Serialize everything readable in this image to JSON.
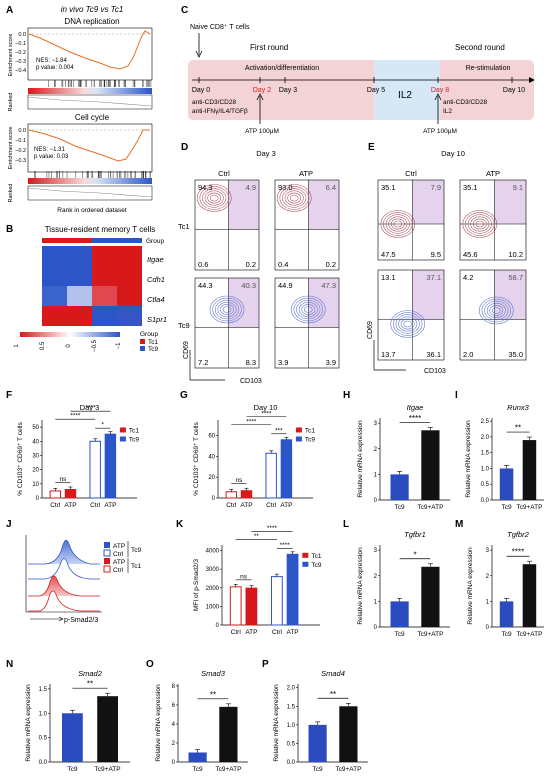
{
  "colors": {
    "tc1": "#d7191c",
    "tc9": "#2c55c8",
    "gsea_line": "#e76f2a",
    "timeline_pink": "#f3d3d6",
    "timeline_blue": "#d6e8f5",
    "quad_pink": "#e9d2ec",
    "quad_purple": "#e0d2ef",
    "red_contour": "#a23a4a",
    "blue_contour": "#4a62c9",
    "bar_blue": "#2b4cc0",
    "bar_black": "#111111"
  },
  "panelA": {
    "label": "A",
    "title": "in vivo Tc9 vs Tc1",
    "top": {
      "title": "DNA replication",
      "nes": "NES: −1.84",
      "pval": "p value: 0.004",
      "yticks": [
        "0.0",
        "−0.1",
        "−0.2",
        "−0.3",
        "−0.4"
      ]
    },
    "bottom": {
      "title": "Cell cycle",
      "nes": "NES: −1.31",
      "pval": "p value: 0.03",
      "yticks": [
        "0.0",
        "−0.1",
        "−0.2",
        "−0.3"
      ]
    },
    "ylabel": "Enrichment score",
    "ranked_label": "Ranked",
    "xlabel": "Rank in ordered dataset"
  },
  "panelB": {
    "label": "B",
    "title": "Tissue-resident memory T cells",
    "group_label": "Group",
    "genes": [
      "Itgae",
      "Cdh1",
      "Ctla4",
      "S1pr1"
    ],
    "scale_ticks": [
      "1",
      "0.5",
      "0",
      "−0.5",
      "−1"
    ],
    "legend_title": "Group",
    "legend": [
      "Tc1",
      "Tc9"
    ]
  },
  "panelC": {
    "label": "C",
    "start": "Naive CD8⁺ T cells",
    "first_round": "First round",
    "second_round": "Second round",
    "phase1": "Activation/differentiation",
    "phase2": "IL2",
    "phase3": "Re-stimulation",
    "days": [
      "Day 0",
      "Day 2",
      "Day 3",
      "Day 5",
      "Day 8",
      "Day 10"
    ],
    "treat1": [
      "anti-CD3/CD28",
      "anti-IFNγ/IL4/TGFβ"
    ],
    "treat2": [
      "anti-CD3/CD28",
      "IL2"
    ],
    "atp1": "ATP 100μM",
    "atp2": "ATP 100μM"
  },
  "panelD": {
    "label": "D",
    "day": "Day 3",
    "cols": [
      "Ctrl",
      "ATP"
    ],
    "row_tc1": "Tc1",
    "row_tc9": "Tc9",
    "xaxis": "CD103",
    "yaxis": "CD69",
    "tc1_ctrl": [
      "94.3",
      "4.9",
      "0.6",
      "0.2"
    ],
    "tc1_atp": [
      "93.0",
      "6.4",
      "0.4",
      "0.2"
    ],
    "tc9_ctrl": [
      "44.3",
      "40.3",
      "7.2",
      "8.3"
    ],
    "tc9_atp": [
      "44.9",
      "47.3",
      "3.9",
      "3.9"
    ]
  },
  "panelE": {
    "label": "E",
    "day": "Day 10",
    "cols": [
      "Ctrl",
      "ATP"
    ],
    "xaxis": "CD103",
    "yaxis": "CD69",
    "tc1_ctrl": [
      "35.1",
      "7.9",
      "47.5",
      "9.5"
    ],
    "tc1_atp": [
      "35.1",
      "9.1",
      "45.6",
      "10.2"
    ],
    "tc9_ctrl": [
      "13.1",
      "37.1",
      "13.7",
      "36.1"
    ],
    "tc9_atp": [
      "4.2",
      "58.7",
      "2.0",
      "35.0"
    ]
  },
  "panelF": {
    "label": "F",
    "title": "Day 3",
    "ylabel": "% CD103⁺ CD69⁺ T cells",
    "yticks": [
      "0",
      "10",
      "20",
      "30",
      "40",
      "50"
    ],
    "xticks": [
      "Ctrl",
      "ATP",
      "Ctrl",
      "ATP"
    ],
    "legend": [
      "Tc1",
      "Tc9"
    ],
    "sig": [
      "ns",
      "****",
      "****",
      "*"
    ]
  },
  "panelG": {
    "label": "G",
    "title": "Day 10",
    "ylabel": "% CD103⁺ CD69⁺ T cells",
    "yticks": [
      "0",
      "20",
      "40",
      "60"
    ],
    "xticks": [
      "Ctrl",
      "ATP",
      "Ctrl",
      "ATP"
    ],
    "legend": [
      "Tc1",
      "Tc9"
    ],
    "sig": [
      "ns",
      "****",
      "****",
      "***"
    ]
  },
  "panelH": {
    "label": "H",
    "gene": "Itgae",
    "ylabel": "Relative mRNA expression",
    "yticks": [
      "0",
      "1",
      "2",
      "3"
    ],
    "xticks": [
      "Tc9",
      "Tc9+ATP"
    ],
    "sig": "****"
  },
  "panelI": {
    "label": "I",
    "gene": "Runx3",
    "ylabel": "Relative mRNA expression",
    "yticks": [
      "0.0",
      "0.5",
      "1.0",
      "1.5",
      "2.0",
      "2.5"
    ],
    "xticks": [
      "Tc9",
      "Tc9+ATP"
    ],
    "sig": "**"
  },
  "panelJ": {
    "label": "J",
    "legend": [
      "ATP",
      "Ctrl",
      "ATP",
      "Ctrl"
    ],
    "groups": [
      "Tc9",
      "Tc1"
    ],
    "xlabel": "p-Smad2/3"
  },
  "panelK": {
    "label": "K",
    "ylabel": "MFI of p-Smad2/3",
    "yticks": [
      "0",
      "1000",
      "2000",
      "3000",
      "4000"
    ],
    "xticks": [
      "Ctrl",
      "ATP",
      "Ctrl",
      "ATP"
    ],
    "legend": [
      "Tc1",
      "Tc9"
    ],
    "sig": [
      "ns",
      "**",
      "****",
      "****"
    ]
  },
  "panelL": {
    "label": "L",
    "gene": "Tgfbr1",
    "ylabel": "Relative mRNA expression",
    "yticks": [
      "0",
      "1",
      "2",
      "3"
    ],
    "xticks": [
      "Tc9",
      "Tc9+ATP"
    ],
    "sig": "*"
  },
  "panelM": {
    "label": "M",
    "gene": "Tgfbr2",
    "ylabel": "Relative mRNA expression",
    "yticks": [
      "0",
      "1",
      "2",
      "3"
    ],
    "xticks": [
      "Tc9",
      "Tc9+ATP"
    ],
    "sig": "****"
  },
  "panelN": {
    "label": "N",
    "gene": "Smad2",
    "ylabel": "Relative mRNA expression",
    "yticks": [
      "0.0",
      "0.5",
      "1.0",
      "1.5"
    ],
    "xticks": [
      "Tc9",
      "Tc9+ATP"
    ],
    "sig": "**"
  },
  "panelO": {
    "label": "O",
    "gene": "Smad3",
    "ylabel": "Relative mRNA expression",
    "yticks": [
      "0",
      "2",
      "4",
      "6",
      "8"
    ],
    "xticks": [
      "Tc9",
      "Tc9+ATP"
    ],
    "sig": "**"
  },
  "panelP": {
    "label": "P",
    "gene": "Smad4",
    "ylabel": "Relative mRNA expression",
    "yticks": [
      "0.0",
      "0.5",
      "1.0",
      "1.5",
      "2.0"
    ],
    "xticks": [
      "Tc9",
      "Tc9+ATP"
    ],
    "sig": "**"
  },
  "chart_data": [
    {
      "type": "bar",
      "panel": "F",
      "title": "Day 3",
      "ylabel": "% CD103⁺ CD69⁺ T cells",
      "categories": [
        "Ctrl",
        "ATP"
      ],
      "ylim": [
        0,
        55
      ],
      "series": [
        {
          "name": "Tc1",
          "values": [
            5,
            6
          ]
        },
        {
          "name": "Tc9",
          "values": [
            40,
            45
          ]
        }
      ]
    },
    {
      "type": "bar",
      "panel": "G",
      "title": "Day 10",
      "ylabel": "% CD103⁺ CD69⁺ T cells",
      "categories": [
        "Ctrl",
        "ATP"
      ],
      "ylim": [
        0,
        75
      ],
      "series": [
        {
          "name": "Tc1",
          "values": [
            6,
            7
          ]
        },
        {
          "name": "Tc9",
          "values": [
            43,
            56
          ]
        }
      ]
    },
    {
      "type": "bar",
      "panel": "H",
      "ylabel": "Relative mRNA expression",
      "categories": [
        "Tc9",
        "Tc9+ATP"
      ],
      "ylim": [
        0,
        3.2
      ],
      "values": [
        1.0,
        2.72
      ]
    },
    {
      "type": "bar",
      "panel": "I",
      "ylabel": "Relative mRNA expression",
      "categories": [
        "Tc9",
        "Tc9+ATP"
      ],
      "ylim": [
        0,
        2.6
      ],
      "values": [
        1.0,
        1.9
      ]
    },
    {
      "type": "bar",
      "panel": "K",
      "ylabel": "MFI of p-Smad2/3",
      "categories": [
        "Ctrl",
        "ATP"
      ],
      "ylim": [
        0,
        4300
      ],
      "series": [
        {
          "name": "Tc1",
          "values": [
            2050,
            1980
          ]
        },
        {
          "name": "Tc9",
          "values": [
            2600,
            3800
          ]
        }
      ]
    },
    {
      "type": "bar",
      "panel": "L",
      "ylabel": "Relative mRNA expression",
      "categories": [
        "Tc9",
        "Tc9+ATP"
      ],
      "ylim": [
        0,
        3.2
      ],
      "values": [
        1.0,
        2.35
      ]
    },
    {
      "type": "bar",
      "panel": "M",
      "ylabel": "Relative mRNA expression",
      "categories": [
        "Tc9",
        "Tc9+ATP"
      ],
      "ylim": [
        0,
        3.2
      ],
      "values": [
        1.0,
        2.45
      ]
    },
    {
      "type": "bar",
      "panel": "N",
      "ylabel": "Relative mRNA expression",
      "categories": [
        "Tc9",
        "Tc9+ATP"
      ],
      "ylim": [
        0,
        1.6
      ],
      "values": [
        1.0,
        1.35
      ]
    },
    {
      "type": "bar",
      "panel": "O",
      "ylabel": "Relative mRNA expression",
      "categories": [
        "Tc9",
        "Tc9+ATP"
      ],
      "ylim": [
        0,
        8.2
      ],
      "values": [
        1.0,
        5.8
      ]
    },
    {
      "type": "bar",
      "panel": "P",
      "ylabel": "Relative mRNA expression",
      "categories": [
        "Tc9",
        "Tc9+ATP"
      ],
      "ylim": [
        0,
        2.1
      ],
      "values": [
        1.0,
        1.5
      ]
    }
  ]
}
